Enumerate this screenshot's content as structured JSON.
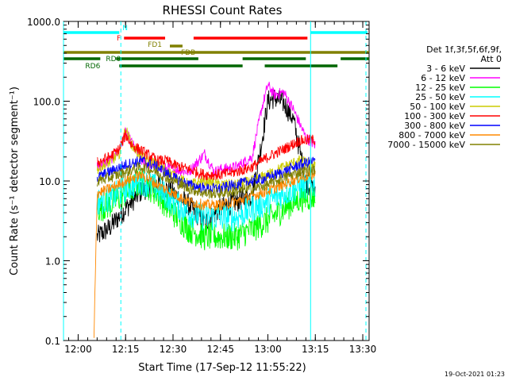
{
  "chart_data": {
    "type": "line",
    "title": "RHESSI Count Rates",
    "xlabel": "Start Time (17-Sep-12 11:55:22)",
    "ylabel": "Count Rate (s⁻¹ detector segment⁻¹)",
    "yscale": "log",
    "ylim": [
      0.1,
      1000
    ],
    "xlim": [
      "11:55:22",
      "13:32:00"
    ],
    "x_ticks": [
      "12:00",
      "12:15",
      "12:30",
      "12:45",
      "13:00",
      "13:15",
      "13:30"
    ],
    "y_ticks": [
      "0.1",
      "1.0",
      "10.0",
      "100.0",
      "1000.0"
    ],
    "grid": false,
    "legend_position": "right",
    "legend_header": [
      "Det 1f,3f,5f,6f,9f,",
      "Att 0"
    ],
    "footer_text": "19-Oct-2021 01:23",
    "series": [
      {
        "name": "3 - 6 keV",
        "color": "#000000",
        "x": [
          "12:06",
          "12:10",
          "12:15",
          "12:20",
          "12:25",
          "12:30",
          "12:35",
          "12:40",
          "12:45",
          "12:50",
          "12:55",
          "12:58",
          "13:00",
          "13:02",
          "13:05",
          "13:08",
          "13:12",
          "13:15"
        ],
        "values": [
          2.0,
          2.6,
          4.5,
          7.5,
          9.5,
          7,
          5,
          3,
          4.5,
          5.5,
          6.5,
          30,
          100,
          110,
          95,
          60,
          10,
          7
        ]
      },
      {
        "name": "6 - 12 keV",
        "color": "#ff00ff",
        "x": [
          "12:06",
          "12:10",
          "12:13",
          "12:15",
          "12:17",
          "12:20",
          "12:25",
          "12:30",
          "12:35",
          "12:40",
          "12:43",
          "12:45",
          "12:50",
          "12:55",
          "12:58",
          "13:00",
          "13:02",
          "13:05",
          "13:08",
          "13:12",
          "13:15"
        ],
        "values": [
          15,
          18,
          25,
          40,
          30,
          18,
          15,
          14,
          13,
          22,
          13,
          14,
          15,
          20,
          80,
          160,
          120,
          130,
          80,
          35,
          28
        ]
      },
      {
        "name": "12 - 25 keV",
        "color": "#00ff00",
        "x": [
          "12:06",
          "12:10",
          "12:15",
          "12:20",
          "12:25",
          "12:30",
          "12:35",
          "12:40",
          "12:45",
          "12:50",
          "12:55",
          "13:00",
          "13:05",
          "13:10",
          "13:15"
        ],
        "values": [
          4.5,
          5,
          7,
          10,
          7,
          4,
          2.5,
          2,
          2,
          2,
          2.5,
          3.2,
          4.5,
          6,
          6.5
        ]
      },
      {
        "name": "25 - 50 keV",
        "color": "#00ffff",
        "x": [
          "12:06",
          "12:10",
          "12:15",
          "12:20",
          "12:25",
          "12:30",
          "12:35",
          "12:40",
          "12:45",
          "12:50",
          "12:55",
          "13:00",
          "13:05",
          "13:10",
          "13:15"
        ],
        "values": [
          5.5,
          6,
          8,
          10,
          8,
          5.5,
          4,
          3.5,
          3.5,
          3.5,
          4.5,
          5.5,
          7,
          8.5,
          9
        ]
      },
      {
        "name": "50 - 100 keV",
        "color": "#cccc00",
        "x": [
          "12:06",
          "12:10",
          "12:13",
          "12:15",
          "12:17",
          "12:20",
          "12:25",
          "12:30",
          "12:35",
          "12:40",
          "12:45",
          "12:50",
          "12:55",
          "13:00",
          "13:05",
          "13:10",
          "13:15"
        ],
        "values": [
          14,
          17,
          22,
          45,
          28,
          20,
          16,
          12,
          9,
          10,
          9,
          9,
          10,
          12,
          15,
          18,
          16
        ]
      },
      {
        "name": "100 - 300 keV",
        "color": "#ff0000",
        "x": [
          "12:06",
          "12:10",
          "12:13",
          "12:15",
          "12:17",
          "12:20",
          "12:25",
          "12:28",
          "12:30",
          "12:35",
          "12:40",
          "12:45",
          "12:50",
          "12:55",
          "13:00",
          "13:05",
          "13:10",
          "13:15"
        ],
        "values": [
          17,
          20,
          25,
          38,
          28,
          24,
          18,
          18,
          16,
          14,
          12,
          12,
          13,
          15,
          20,
          25,
          32,
          33
        ]
      },
      {
        "name": "300 - 800 keV",
        "color": "#0000ff",
        "x": [
          "12:06",
          "12:10",
          "12:15",
          "12:20",
          "12:25",
          "12:30",
          "12:35",
          "12:40",
          "12:45",
          "12:50",
          "12:55",
          "13:00",
          "13:05",
          "13:10",
          "13:15"
        ],
        "values": [
          11,
          13,
          16,
          18,
          15,
          11,
          9,
          8,
          8,
          9,
          10,
          11,
          13,
          16,
          18
        ]
      },
      {
        "name": "800 - 7000 keV",
        "color": "#ff8800",
        "x": [
          "12:05",
          "12:06",
          "12:10",
          "12:15",
          "12:20",
          "12:25",
          "12:30",
          "12:35",
          "12:40",
          "12:45",
          "12:50",
          "12:55",
          "13:00",
          "13:05",
          "13:10",
          "13:15"
        ],
        "values": [
          0.1,
          7,
          8,
          10,
          12,
          9,
          7,
          5.5,
          5,
          5,
          5.5,
          6.5,
          7.5,
          9,
          11,
          12
        ]
      },
      {
        "name": "7000 - 15000 keV",
        "color": "#808000",
        "x": [
          "12:06",
          "12:10",
          "12:15",
          "12:20",
          "12:25",
          "12:30",
          "12:35",
          "12:40",
          "12:45",
          "12:50",
          "12:55",
          "13:00",
          "13:05",
          "13:10",
          "13:15"
        ],
        "values": [
          10,
          11,
          13,
          15,
          13,
          10,
          8,
          7,
          7,
          7.5,
          8,
          9,
          11,
          13,
          14
        ]
      }
    ],
    "vlines": [
      {
        "x": "11:55:22",
        "color": "#00ffff",
        "style": "solid"
      },
      {
        "x": "12:13:30",
        "color": "#00ffff",
        "style": "dashed"
      },
      {
        "x": "13:13:30",
        "color": "#00ffff",
        "style": "solid"
      },
      {
        "x": "13:31:00",
        "color": "#00ffff",
        "style": "dashed"
      }
    ],
    "flag_bars": [
      {
        "label": "N",
        "color": "#00ffff",
        "level": 1,
        "segments": [
          [
            "11:55:22",
            "12:13:00"
          ],
          [
            "13:13:30",
            "13:31:30"
          ]
        ]
      },
      {
        "label": "F",
        "color": "#ff0000",
        "level": 2,
        "segments": [
          [
            "12:14:30",
            "12:27:30"
          ],
          [
            "12:36:30",
            "13:12:30"
          ]
        ]
      },
      {
        "label": "FD1",
        "color": "#808000",
        "level": 3,
        "segments": [
          [
            "12:29:00",
            "12:33:00"
          ]
        ]
      },
      {
        "label": "FDB",
        "color": "#808000",
        "level": 4,
        "segments": [
          [
            "11:55:22",
            "13:32:00"
          ]
        ]
      },
      {
        "label": "RD0",
        "color": "#006600",
        "level": 5,
        "segments": [
          [
            "11:55:22",
            "12:07:00"
          ],
          [
            "12:12:00",
            "12:38:00"
          ],
          [
            "12:52:00",
            "13:12:00"
          ],
          [
            "13:23:00",
            "13:32:00"
          ]
        ]
      },
      {
        "label": "RD6",
        "color": "#006600",
        "level": 6,
        "segments": [
          [
            "12:13:00",
            "12:52:00"
          ],
          [
            "12:59:00",
            "13:22:00"
          ]
        ]
      }
    ]
  }
}
